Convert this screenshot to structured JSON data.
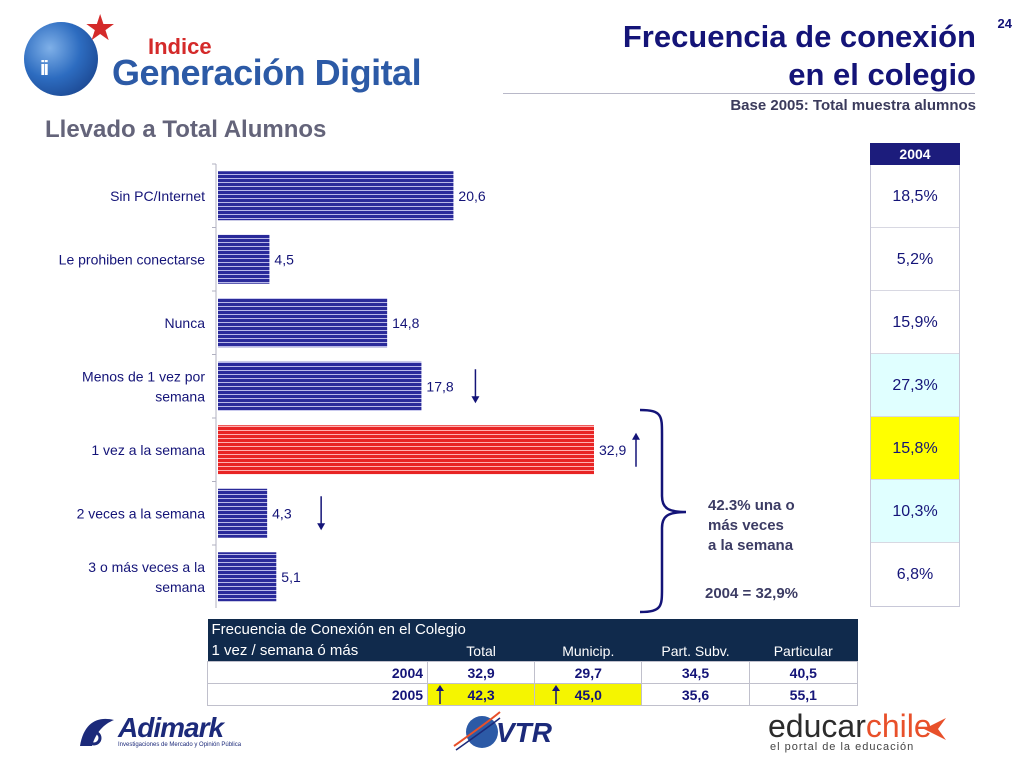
{
  "slide_number": "24",
  "title_line1": "Frecuencia de conexión",
  "title_line2": "en el colegio",
  "subtitle": "Base 2005: Total muestra alumnos",
  "section_label": "Llevado a Total Alumnos",
  "logo": {
    "small": "Indice",
    "big": "Generación Digital",
    "people": "ii"
  },
  "chart_data": {
    "type": "bar",
    "orientation": "horizontal",
    "categories": [
      "Sin PC/Internet",
      "Le prohiben conectarse",
      "Nunca",
      "Menos de 1 vez por semana",
      "1 vez a la semana",
      "2 veces a la semana",
      "3 o más veces a la semana"
    ],
    "category_lines": [
      [
        "Sin PC/Internet"
      ],
      [
        "Le prohiben conectarse"
      ],
      [
        "Nunca"
      ],
      [
        "Menos de 1 vez por",
        "semana"
      ],
      [
        "1 vez a la semana"
      ],
      [
        "2 veces a la semana"
      ],
      [
        "3 o más veces a la",
        "semana"
      ]
    ],
    "values": [
      20.6,
      4.5,
      14.8,
      17.8,
      32.9,
      4.3,
      5.1
    ],
    "value_labels": [
      "20,6",
      "4,5",
      "14,8",
      "17,8",
      "32,9",
      "4,3",
      "5,1"
    ],
    "highlight_index": 4,
    "trend_arrows": [
      null,
      null,
      null,
      "down",
      "up",
      "down",
      null
    ],
    "colors": {
      "bar": "#2a2a9a",
      "bar_stripe": "#b8b8e8",
      "highlight": "#e82424",
      "highlight_stripe": "#ffb0b0"
    },
    "xlim": [
      0,
      35
    ]
  },
  "side_table": {
    "header": "2004",
    "values": [
      "18,5%",
      "5,2%",
      "15,9%",
      "27,3%",
      "15,8%",
      "10,3%",
      "6,8%"
    ],
    "colors": [
      "#ffffff",
      "#ffffff",
      "#ffffff",
      "#e0ffff",
      "#ffff00",
      "#e0ffff",
      "#ffffff"
    ]
  },
  "annotation": {
    "lines": [
      "42.3% una o",
      "más veces",
      "a la semana"
    ],
    "comparison": "2004 = 32,9%"
  },
  "bottom_table": {
    "title": "Frecuencia de Conexión  en el Colegio",
    "row_label": "1 vez / semana ó más",
    "columns": [
      "Total",
      "Municip.",
      "Part. Subv.",
      "Particular"
    ],
    "rows": [
      {
        "year": "2004",
        "values": [
          "32,9",
          "29,7",
          "34,5",
          "40,5"
        ]
      },
      {
        "year": "2005",
        "values": [
          "42,3",
          "45,0",
          "35,6",
          "55,1"
        ]
      }
    ]
  },
  "footer": {
    "adimark": "Adimark",
    "adimark_tag": "Investigaciones de Mercado y Opinión Pública",
    "vtr": "VTR",
    "educar_a": "educar",
    "educar_b": "chile",
    "educar_tag": "el portal de la educación"
  }
}
